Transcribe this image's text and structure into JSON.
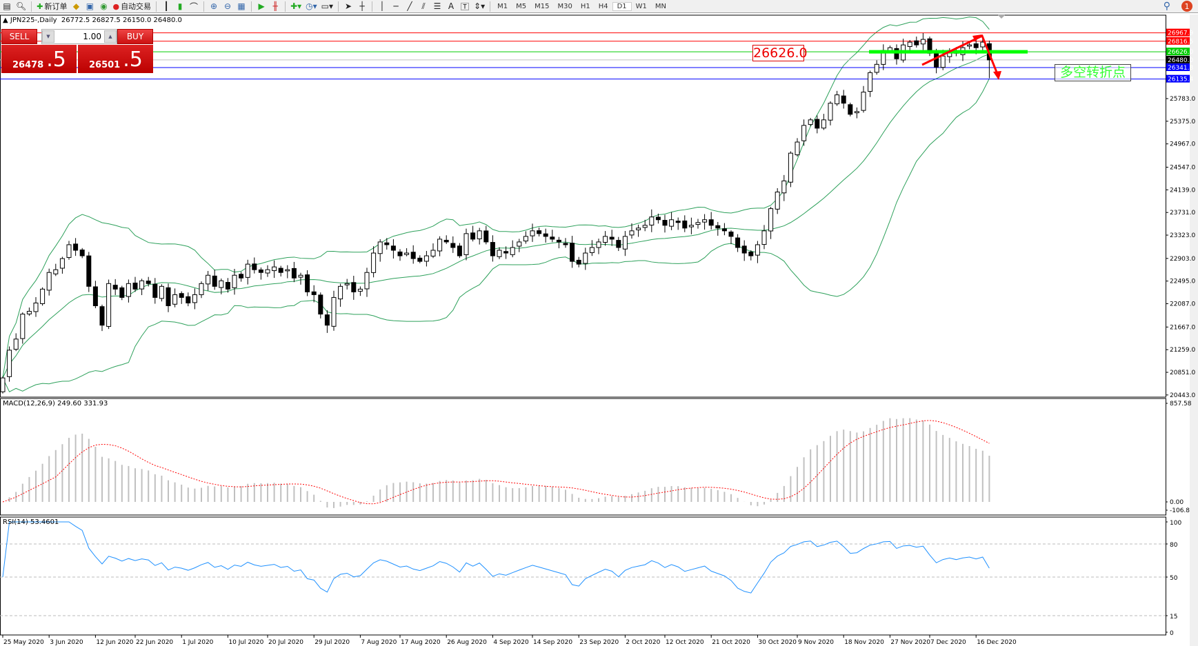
{
  "toolbar": {
    "new_order": "新订单",
    "auto_trading": "自动交易",
    "timeframes": [
      "M1",
      "M5",
      "M15",
      "M30",
      "H1",
      "H4",
      "D1",
      "W1",
      "MN"
    ],
    "active_timeframe": "D1",
    "notification_count": "1",
    "text_tool": "A"
  },
  "chart_header": {
    "symbol": "JPN225-,Daily",
    "open": "26772.5",
    "high": "26827.5",
    "low": "26150.0",
    "close": "26480.0"
  },
  "trade_panel": {
    "sell_label": "SELL",
    "buy_label": "BUY",
    "volume": "1.00",
    "sell_price_main": "26478",
    "sell_price_frac": ".5",
    "buy_price_main": "26501",
    "buy_price_frac": ".5"
  },
  "annotations": {
    "level_label": "26626.0",
    "turn_text": "多空转折点"
  },
  "colors": {
    "bull": "#ffffff",
    "bear": "#000000",
    "bands": "#2ca05a",
    "macd_hist": "#c0c0c0",
    "macd_signal": "#ff0000",
    "rsi": "#1e90ff"
  },
  "chart_data": [
    {
      "type": "candlestick",
      "symbol": "JPN225-",
      "period": "Daily",
      "indicator": "Bollinger Bands",
      "ylim": [
        20443.0,
        27286.0
      ],
      "y_ticks": [
        "25783.0",
        "25375.0",
        "24967.0",
        "24547.0",
        "24139.0",
        "23731.0",
        "23323.0",
        "22903.0",
        "22495.0",
        "22087.0",
        "21667.0",
        "21259.0",
        "20851.0",
        "20443.0"
      ],
      "x_ticks": [
        {
          "bar": 0,
          "label": "25 May 2020"
        },
        {
          "bar": 7,
          "label": "3 Jun 2020"
        },
        {
          "bar": 14,
          "label": "12 Jun 2020"
        },
        {
          "bar": 20,
          "label": "22 Jun 2020"
        },
        {
          "bar": 27,
          "label": "1 Jul 2020"
        },
        {
          "bar": 34,
          "label": "10 Jul 2020"
        },
        {
          "bar": 40,
          "label": "20 Jul 2020"
        },
        {
          "bar": 47,
          "label": "29 Jul 2020"
        },
        {
          "bar": 54,
          "label": "7 Aug 2020"
        },
        {
          "bar": 60,
          "label": "17 Aug 2020"
        },
        {
          "bar": 67,
          "label": "26 Aug 2020"
        },
        {
          "bar": 74,
          "label": "4 Sep 2020"
        },
        {
          "bar": 80,
          "label": "14 Sep 2020"
        },
        {
          "bar": 87,
          "label": "23 Sep 2020"
        },
        {
          "bar": 94,
          "label": "2 Oct 2020"
        },
        {
          "bar": 100,
          "label": "12 Oct 2020"
        },
        {
          "bar": 107,
          "label": "21 Oct 2020"
        },
        {
          "bar": 114,
          "label": "30 Oct 2020"
        },
        {
          "bar": 120,
          "label": "9 Nov 2020"
        },
        {
          "bar": 127,
          "label": "18 Nov 2020"
        },
        {
          "bar": 134,
          "label": "27 Nov 2020"
        },
        {
          "bar": 140,
          "label": "7 Dec 2020"
        },
        {
          "bar": 147,
          "label": "16 Dec 2020"
        }
      ],
      "closes": [
        20750,
        21250,
        21450,
        21900,
        21950,
        22100,
        22350,
        22650,
        22700,
        22900,
        23150,
        23050,
        22950,
        22400,
        22050,
        21700,
        22450,
        22350,
        22200,
        22450,
        22350,
        22500,
        22450,
        22200,
        22400,
        22050,
        22250,
        22200,
        22100,
        22250,
        22450,
        22600,
        22400,
        22500,
        22350,
        22600,
        22550,
        22800,
        22700,
        22650,
        22700,
        22750,
        22650,
        22700,
        22550,
        22600,
        22300,
        22250,
        21900,
        21700,
        22200,
        22400,
        22450,
        22300,
        22350,
        22650,
        23000,
        23200,
        23150,
        23050,
        22950,
        23000,
        22900,
        22850,
        22950,
        23050,
        23250,
        23200,
        23100,
        22950,
        23350,
        23250,
        23400,
        23200,
        22950,
        23050,
        23000,
        23100,
        23200,
        23300,
        23400,
        23350,
        23300,
        23250,
        23200,
        23150,
        22850,
        22800,
        23000,
        23100,
        23200,
        23300,
        23250,
        23100,
        23300,
        23400,
        23450,
        23500,
        23650,
        23600,
        23500,
        23600,
        23550,
        23450,
        23500,
        23550,
        23600,
        23500,
        23450,
        23400,
        23300,
        23100,
        23000,
        22950,
        23150,
        23400,
        23800,
        24100,
        24300,
        24800,
        25000,
        25300,
        25400,
        25250,
        25400,
        25700,
        25850,
        25700,
        25500,
        25550,
        25900,
        26250,
        26400,
        26650,
        26700,
        26500,
        26750,
        26800,
        26750,
        26850,
        26600,
        26350,
        26550,
        26650,
        26600,
        26700,
        26750,
        26700,
        26800,
        26480
      ],
      "last_bar": {
        "open": 26772.5,
        "high": 26827.5,
        "low": 26150.0,
        "close": 26480.0
      },
      "levels": [
        {
          "price": "26967.9",
          "color": "#ff0000"
        },
        {
          "price": "26816.5",
          "color": "#ff0000"
        },
        {
          "price": "26626.0",
          "color": "#00cc00"
        },
        {
          "price": "26480.0",
          "color": "#c0c0c0",
          "label_bg": "#000000"
        },
        {
          "price": "26341.8",
          "color": "#0000ff"
        },
        {
          "price": "26135.4",
          "color": "#0000ff"
        }
      ]
    },
    {
      "type": "bar",
      "name": "MACD(12,26,9)",
      "main_value": "249.60",
      "signal_value": "331.93",
      "ylim": [
        -106.8,
        857.58
      ],
      "y_ticks": [
        "857.58",
        "0.00",
        "-106.8"
      ]
    },
    {
      "type": "line",
      "name": "RSI(14)",
      "value": "53.4601",
      "ylim": [
        0,
        100
      ],
      "y_ticks": [
        "100",
        "80",
        "50",
        "15",
        "0"
      ],
      "levels": [
        80,
        50,
        15
      ]
    }
  ]
}
